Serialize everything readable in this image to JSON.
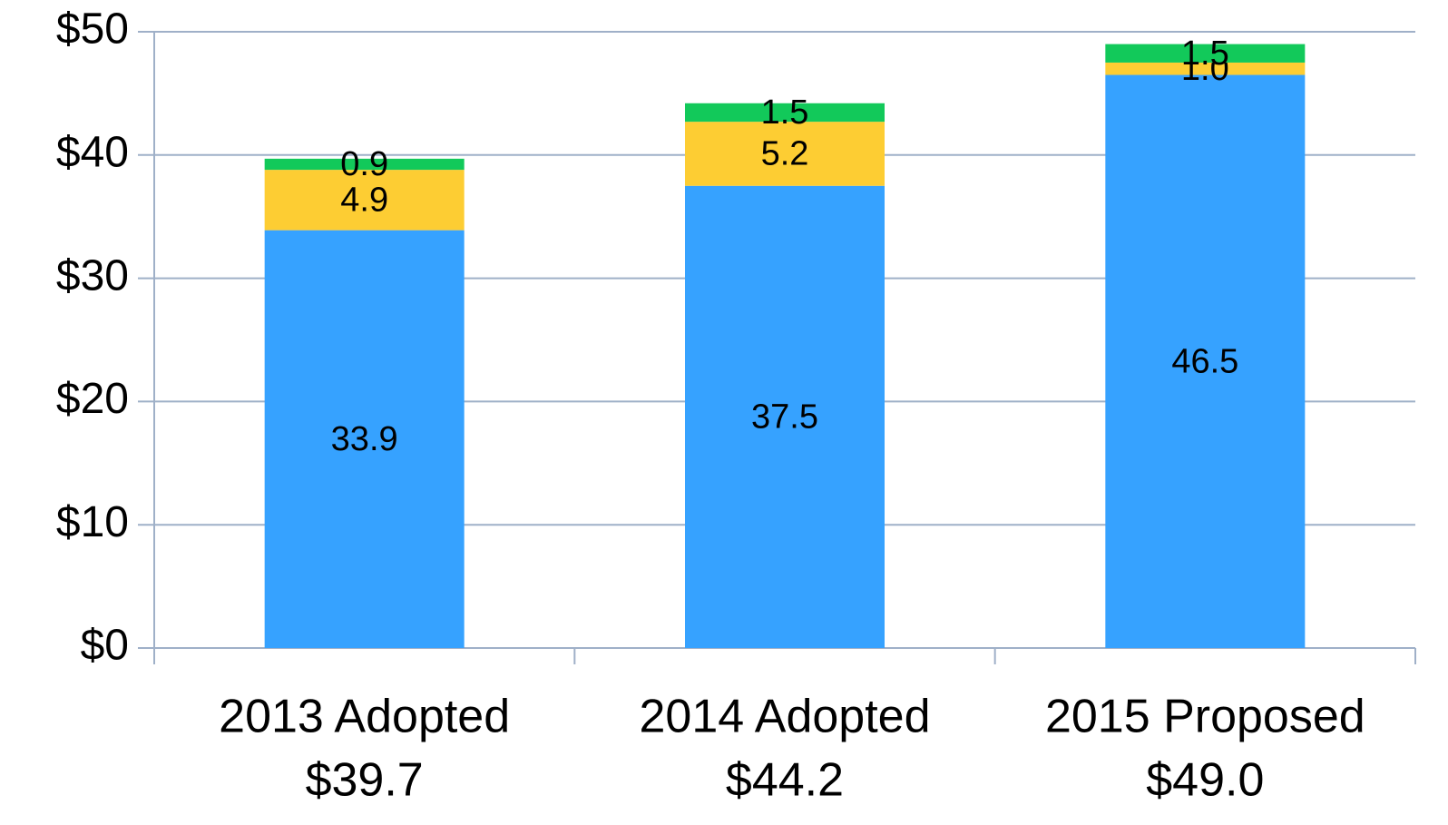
{
  "chart_data": {
    "type": "stacked_bar",
    "categories": [
      [
        "2013 Adopted",
        "$39.7"
      ],
      [
        "2014 Adopted",
        "$44.2"
      ],
      [
        "2015 Proposed",
        "$49.0"
      ]
    ],
    "series": [
      {
        "color": "#36a2ff",
        "values": [
          33.9,
          37.5,
          46.5
        ],
        "value_labels": [
          "33.9",
          "37.5",
          "46.5"
        ]
      },
      {
        "color": "#fdcd33",
        "values": [
          4.9,
          5.2,
          1.0
        ],
        "value_labels": [
          "4.9",
          "5.2",
          "1.0"
        ]
      },
      {
        "color": "#12c95a",
        "values": [
          0.9,
          1.5,
          1.5
        ],
        "value_labels": [
          "0.9",
          "1.5",
          "1.5"
        ]
      }
    ],
    "ylim": [
      0,
      50
    ],
    "yticks": [
      {
        "value": 0,
        "label": "$0"
      },
      {
        "value": 10,
        "label": "$10"
      },
      {
        "value": 20,
        "label": "$20"
      },
      {
        "value": 30,
        "label": "$30"
      },
      {
        "value": 40,
        "label": "$40"
      },
      {
        "value": 50,
        "label": "$50"
      }
    ],
    "grid": true
  }
}
